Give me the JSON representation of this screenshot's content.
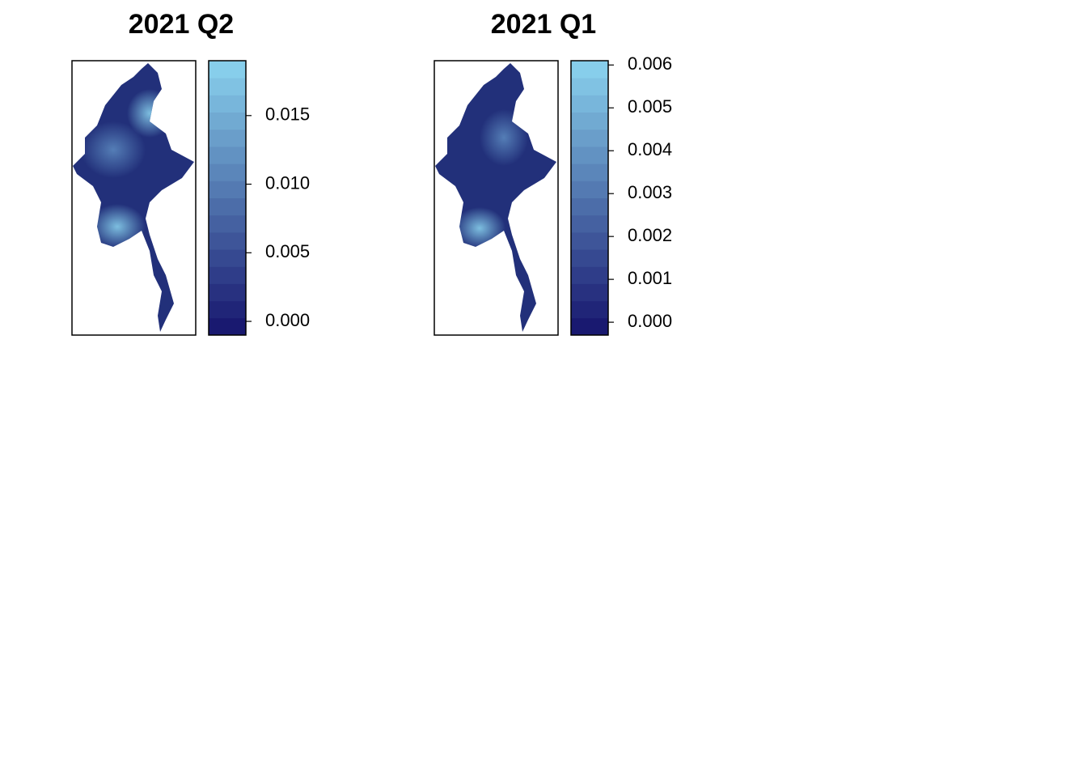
{
  "chart_data": [
    {
      "type": "map",
      "title": "2021 Q2",
      "palette": [
        "#191970",
        "#87CEEB"
      ],
      "ylim": [
        -0.001,
        0.019
      ],
      "yticks": [
        {
          "value": 0,
          "label": "0.000"
        },
        {
          "value": 0.005,
          "label": "0.005"
        },
        {
          "value": 0.01,
          "label": "0.010"
        },
        {
          "value": 0.015,
          "label": "0.015"
        }
      ]
    },
    {
      "type": "map",
      "title": "2021 Q1",
      "palette": [
        "#191970",
        "#87CEEB"
      ],
      "ylim": [
        -0.0003,
        0.0061
      ],
      "yticks": [
        {
          "value": 0,
          "label": "0.000"
        },
        {
          "value": 0.001,
          "label": "0.001"
        },
        {
          "value": 0.002,
          "label": "0.002"
        },
        {
          "value": 0.003,
          "label": "0.003"
        },
        {
          "value": 0.004,
          "label": "0.004"
        },
        {
          "value": 0.005,
          "label": "0.005"
        },
        {
          "value": 0.006,
          "label": "0.006"
        }
      ]
    }
  ]
}
